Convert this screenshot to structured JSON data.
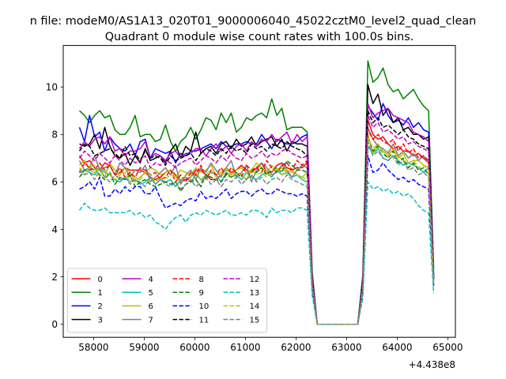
{
  "figure": {
    "suptitle": "n file: modeM0/AS1A13_020T01_9000006040_45022cztM0_level2_quad_clean",
    "offset_label": "+4.438e8"
  },
  "chart_data": {
    "type": "line",
    "title": "Quadrant 0 module wise count rates with 100.0s bins.",
    "xlabel": "",
    "ylabel": "",
    "x_offset": 443800000,
    "xlim": [
      57400,
      65150
    ],
    "ylim": [
      -0.55,
      11.75
    ],
    "x_ticks": [
      58000,
      59000,
      60000,
      61000,
      62000,
      63000,
      64000,
      65000
    ],
    "x_tick_labels": [
      "58000",
      "59000",
      "60000",
      "61000",
      "62000",
      "63000",
      "64000",
      "65000"
    ],
    "y_ticks": [
      0,
      2,
      4,
      6,
      8,
      10
    ],
    "y_tick_labels": [
      "0",
      "2",
      "4",
      "6",
      "8",
      "10"
    ],
    "grid": false,
    "legend_position": "lower-left",
    "legend_columns": 4,
    "x": {
      "start": 57720,
      "step": 100,
      "count": 71
    },
    "series": [
      {
        "name": "0",
        "color": "#ff0000",
        "dash": "solid",
        "values": [
          7.1,
          6.8,
          6.9,
          6.6,
          6.5,
          6.8,
          6.7,
          6.3,
          6.4,
          6.6,
          6.5,
          6.5,
          6.5,
          6.4,
          6.2,
          6.1,
          6.2,
          6.4,
          6.5,
          6.3,
          6.0,
          6.1,
          6.2,
          6.5,
          6.5,
          6.3,
          6.1,
          6.1,
          6.3,
          6.6,
          6.4,
          6.5,
          6.7,
          6.5,
          6.4,
          6.6,
          6.8,
          6.4,
          6.4,
          6.7,
          6.8,
          6.6,
          6.5,
          6.6,
          6.6,
          6.8,
          1.6,
          0,
          0,
          0,
          0,
          0,
          0,
          0,
          0,
          0,
          1.5,
          8.6,
          8.0,
          7.8,
          7.9,
          7.6,
          7.4,
          7.5,
          7.3,
          7.3,
          7.1,
          7.2,
          7.0,
          6.8,
          1.9
        ]
      },
      {
        "name": "1",
        "color": "#008000",
        "dash": "solid",
        "values": [
          9.0,
          8.8,
          8.5,
          8.8,
          9.0,
          8.7,
          8.8,
          8.2,
          8.0,
          8.0,
          8.3,
          8.8,
          7.9,
          8.0,
          8.0,
          7.7,
          7.8,
          8.4,
          7.7,
          7.3,
          7.7,
          7.9,
          8.3,
          7.8,
          8.2,
          8.7,
          8.6,
          8.2,
          8.9,
          8.5,
          8.9,
          8.1,
          8.3,
          8.7,
          8.6,
          8.8,
          8.9,
          8.7,
          9.5,
          8.8,
          9.1,
          8.2,
          8.3,
          8.3,
          8.3,
          8.1,
          2.2,
          0,
          0,
          0,
          0,
          0,
          0,
          0,
          0,
          0,
          2.1,
          11.1,
          10.2,
          10.4,
          10.8,
          10.1,
          9.8,
          9.9,
          9.5,
          9.7,
          9.9,
          9.5,
          9.2,
          9.0,
          2.3
        ]
      },
      {
        "name": "2",
        "color": "#0000ff",
        "dash": "solid",
        "values": [
          8.3,
          7.7,
          8.8,
          7.9,
          8.1,
          7.3,
          7.9,
          7.6,
          7.4,
          7.3,
          7.6,
          7.1,
          7.7,
          7.8,
          7.0,
          7.4,
          7.3,
          7.2,
          7.3,
          6.8,
          7.2,
          7.1,
          7.3,
          7.3,
          7.4,
          7.5,
          7.6,
          7.4,
          7.7,
          7.5,
          7.5,
          7.6,
          7.6,
          7.7,
          7.6,
          7.6,
          8.0,
          7.7,
          7.4,
          7.8,
          7.7,
          7.6,
          7.6,
          7.7,
          7.9,
          8.0,
          2.0,
          0,
          0,
          0,
          0,
          0,
          0,
          0,
          0,
          0,
          1.9,
          9.2,
          8.9,
          8.6,
          9.3,
          8.8,
          8.5,
          8.6,
          8.4,
          8.7,
          8.3,
          8.5,
          8.2,
          8.1,
          2.1
        ]
      },
      {
        "name": "3",
        "color": "#000000",
        "dash": "solid",
        "values": [
          7.6,
          7.5,
          7.6,
          8.0,
          7.4,
          8.3,
          7.5,
          7.1,
          7.0,
          7.2,
          6.7,
          7.1,
          6.8,
          7.4,
          6.9,
          7.0,
          7.1,
          6.8,
          7.3,
          7.6,
          7.0,
          7.5,
          7.3,
          8.1,
          7.2,
          7.4,
          7.5,
          7.2,
          7.6,
          7.7,
          7.4,
          7.8,
          7.5,
          7.6,
          7.9,
          7.5,
          7.7,
          7.8,
          7.9,
          7.5,
          7.8,
          7.3,
          7.7,
          7.6,
          7.6,
          7.5,
          1.9,
          0,
          0,
          0,
          0,
          0,
          0,
          0,
          0,
          0,
          1.8,
          10.1,
          9.3,
          9.7,
          8.8,
          9.1,
          8.5,
          8.7,
          8.2,
          8.3,
          8.0,
          8.0,
          7.8,
          7.9,
          2.0
        ]
      },
      {
        "name": "4",
        "color": "#bf00bf",
        "dash": "solid",
        "values": [
          7.4,
          7.7,
          7.5,
          7.8,
          7.9,
          7.6,
          7.9,
          7.3,
          7.4,
          7.1,
          7.3,
          7.3,
          7.4,
          7.7,
          7.0,
          7.2,
          7.1,
          6.9,
          7.2,
          7.3,
          7.0,
          7.2,
          7.2,
          7.4,
          7.4,
          7.1,
          7.4,
          7.6,
          7.3,
          7.5,
          7.2,
          7.5,
          7.6,
          7.3,
          7.7,
          7.5,
          7.8,
          7.7,
          8.0,
          7.7,
          7.9,
          8.1,
          7.6,
          8.0,
          7.7,
          7.9,
          1.9,
          0,
          0,
          0,
          0,
          0,
          0,
          0,
          0,
          0,
          1.8,
          9.3,
          8.7,
          8.9,
          9.0,
          9.1,
          8.8,
          8.7,
          8.6,
          8.5,
          8.1,
          8.0,
          7.9,
          7.7,
          2.0
        ]
      },
      {
        "name": "5",
        "color": "#00bfbf",
        "dash": "solid",
        "values": [
          6.4,
          6.5,
          6.4,
          6.3,
          6.6,
          6.4,
          6.3,
          6.1,
          6.0,
          6.2,
          6.0,
          6.1,
          5.9,
          6.0,
          6.2,
          5.9,
          6.1,
          6.0,
          6.1,
          5.8,
          6.1,
          6.2,
          6.0,
          6.3,
          6.1,
          6.2,
          6.4,
          6.3,
          6.0,
          6.4,
          6.2,
          6.3,
          6.1,
          6.4,
          6.2,
          6.1,
          6.3,
          6.4,
          6.2,
          6.5,
          6.3,
          6.4,
          6.2,
          6.3,
          6.1,
          6.0,
          1.5,
          0,
          0,
          0,
          0,
          0,
          0,
          0,
          0,
          0,
          1.4,
          7.5,
          7.2,
          7.4,
          7.0,
          6.9,
          7.1,
          6.9,
          6.7,
          6.8,
          6.7,
          6.6,
          6.4,
          6.6,
          1.7
        ]
      },
      {
        "name": "6",
        "color": "#bfbf00",
        "dash": "solid",
        "values": [
          6.7,
          6.9,
          6.5,
          6.4,
          6.6,
          6.2,
          6.8,
          6.5,
          6.3,
          6.6,
          6.4,
          6.0,
          6.2,
          6.4,
          6.6,
          6.5,
          6.3,
          6.4,
          6.5,
          6.2,
          6.5,
          6.4,
          6.3,
          6.6,
          6.4,
          6.5,
          6.7,
          6.3,
          6.4,
          6.6,
          6.3,
          6.5,
          6.6,
          6.4,
          6.5,
          6.8,
          6.6,
          6.4,
          6.7,
          6.5,
          6.6,
          6.4,
          6.5,
          6.3,
          6.2,
          6.4,
          1.6,
          0,
          0,
          0,
          0,
          0,
          0,
          0,
          0,
          0,
          1.5,
          8.0,
          7.2,
          7.6,
          7.3,
          7.1,
          7.4,
          7.0,
          7.2,
          6.8,
          6.9,
          6.9,
          6.7,
          6.6,
          1.8
        ]
      },
      {
        "name": "7",
        "color": "#808080",
        "dash": "solid",
        "values": [
          6.9,
          6.5,
          6.6,
          7.1,
          6.5,
          6.6,
          6.7,
          6.3,
          6.8,
          6.6,
          6.2,
          6.5,
          6.4,
          6.7,
          6.0,
          6.2,
          6.4,
          6.6,
          6.3,
          6.7,
          5.9,
          6.3,
          6.5,
          6.1,
          6.6,
          6.4,
          6.8,
          6.5,
          6.2,
          6.6,
          6.9,
          6.2,
          6.4,
          6.7,
          6.0,
          6.5,
          6.8,
          6.6,
          6.3,
          6.4,
          6.7,
          6.5,
          6.2,
          6.5,
          6.7,
          6.6,
          1.7,
          0,
          0,
          0,
          0,
          0,
          0,
          0,
          0,
          0,
          1.6,
          8.3,
          7.8,
          7.5,
          7.4,
          7.2,
          7.6,
          7.1,
          7.3,
          7.0,
          7.2,
          6.9,
          7.1,
          6.8,
          1.9
        ]
      },
      {
        "name": "8",
        "color": "#ff0000",
        "dash": "dashed",
        "values": [
          6.4,
          6.8,
          6.6,
          6.5,
          6.8,
          6.5,
          6.7,
          6.3,
          6.6,
          6.2,
          6.4,
          6.2,
          6.6,
          6.5,
          6.3,
          6.4,
          6.1,
          6.2,
          6.5,
          6.0,
          6.3,
          6.0,
          6.4,
          6.3,
          6.7,
          6.1,
          6.5,
          6.3,
          6.6,
          6.3,
          6.6,
          6.4,
          6.2,
          6.7,
          6.5,
          6.6,
          6.4,
          6.9,
          6.6,
          6.4,
          6.7,
          6.8,
          6.5,
          6.9,
          6.7,
          6.9,
          1.7,
          0,
          0,
          0,
          0,
          0,
          0,
          0,
          0,
          0,
          1.6,
          8.2,
          7.8,
          8.0,
          7.7,
          7.6,
          7.8,
          7.3,
          7.6,
          7.2,
          7.4,
          7.0,
          7.1,
          6.9,
          1.9
        ]
      },
      {
        "name": "9",
        "color": "#008000",
        "dash": "dashed",
        "values": [
          6.2,
          6.5,
          6.5,
          6.6,
          6.3,
          6.1,
          6.4,
          5.9,
          6.2,
          6.1,
          6.3,
          5.8,
          6.0,
          6.1,
          5.9,
          5.8,
          5.9,
          6.0,
          5.9,
          6.0,
          5.6,
          5.9,
          6.0,
          6.1,
          5.8,
          6.3,
          6.2,
          6.1,
          6.0,
          6.3,
          6.2,
          6.4,
          6.3,
          6.1,
          6.5,
          6.4,
          6.6,
          6.3,
          6.5,
          6.6,
          6.4,
          6.9,
          6.7,
          6.5,
          6.5,
          6.4,
          1.6,
          0,
          0,
          0,
          0,
          0,
          0,
          0,
          0,
          0,
          1.5,
          7.9,
          7.3,
          7.5,
          7.2,
          7.0,
          7.3,
          6.8,
          7.0,
          6.6,
          6.8,
          6.5,
          6.6,
          6.3,
          1.8
        ]
      },
      {
        "name": "10",
        "color": "#0000ff",
        "dash": "dashed",
        "values": [
          5.7,
          5.8,
          6.0,
          5.7,
          6.2,
          5.4,
          5.4,
          5.7,
          5.5,
          5.8,
          5.6,
          5.8,
          5.8,
          5.5,
          5.5,
          5.8,
          5.3,
          4.9,
          5.0,
          5.1,
          5.0,
          5.2,
          5.3,
          5.2,
          5.6,
          5.3,
          5.4,
          5.3,
          5.5,
          5.7,
          5.3,
          5.5,
          5.6,
          5.6,
          5.4,
          5.6,
          5.7,
          5.5,
          5.5,
          5.7,
          5.6,
          5.5,
          5.5,
          5.4,
          5.5,
          5.4,
          1.4,
          0,
          0,
          0,
          0,
          0,
          0,
          0,
          0,
          0,
          1.3,
          7.1,
          6.4,
          6.5,
          6.8,
          6.5,
          6.3,
          6.1,
          6.2,
          6.0,
          6.1,
          5.9,
          5.8,
          5.7,
          1.6
        ]
      },
      {
        "name": "11",
        "color": "#000000",
        "dash": "dashed",
        "values": [
          7.3,
          7.6,
          7.5,
          7.1,
          7.2,
          7.3,
          7.4,
          7.2,
          7.0,
          7.5,
          7.1,
          7.2,
          6.9,
          7.3,
          7.0,
          7.1,
          7.0,
          6.7,
          7.1,
          6.9,
          7.0,
          7.1,
          7.2,
          6.9,
          7.2,
          7.4,
          7.3,
          7.1,
          7.4,
          7.2,
          7.5,
          7.3,
          7.4,
          7.2,
          7.6,
          7.4,
          7.5,
          7.3,
          7.6,
          7.5,
          7.4,
          7.7,
          7.5,
          7.4,
          7.3,
          7.1,
          1.8,
          0,
          0,
          0,
          0,
          0,
          0,
          0,
          0,
          0,
          1.7,
          9.0,
          8.5,
          8.7,
          8.3,
          8.4,
          8.2,
          8.0,
          8.2,
          7.9,
          7.8,
          7.6,
          7.5,
          7.4,
          1.9
        ]
      },
      {
        "name": "12",
        "color": "#bf00bf",
        "dash": "dashed",
        "values": [
          7.0,
          7.3,
          7.1,
          6.9,
          7.2,
          7.0,
          6.8,
          7.1,
          6.9,
          6.7,
          7.0,
          6.8,
          6.9,
          7.1,
          6.6,
          6.8,
          6.7,
          6.9,
          6.8,
          6.6,
          6.8,
          6.9,
          7.0,
          6.7,
          6.9,
          7.1,
          7.0,
          6.8,
          7.1,
          6.9,
          7.2,
          7.0,
          6.9,
          7.2,
          7.0,
          7.1,
          7.3,
          7.0,
          7.2,
          7.1,
          7.3,
          7.4,
          7.2,
          7.1,
          7.0,
          7.1,
          1.8,
          0,
          0,
          0,
          0,
          0,
          0,
          0,
          0,
          0,
          1.7,
          8.8,
          8.3,
          8.5,
          8.1,
          8.2,
          8.0,
          7.8,
          7.9,
          7.6,
          7.7,
          7.5,
          7.4,
          7.3,
          1.9
        ]
      },
      {
        "name": "13",
        "color": "#00bfbf",
        "dash": "dashed",
        "values": [
          4.8,
          5.1,
          4.9,
          4.8,
          4.8,
          4.9,
          4.7,
          4.7,
          4.7,
          4.7,
          4.8,
          4.6,
          4.7,
          4.5,
          4.6,
          4.3,
          4.2,
          4.0,
          4.3,
          4.5,
          4.6,
          4.3,
          4.6,
          4.7,
          4.6,
          4.8,
          4.7,
          4.6,
          4.7,
          4.8,
          4.6,
          4.6,
          4.7,
          4.6,
          4.8,
          4.8,
          4.7,
          4.5,
          4.9,
          4.7,
          4.8,
          4.8,
          4.7,
          4.9,
          4.9,
          4.8,
          1.2,
          0,
          0,
          0,
          0,
          0,
          0,
          0,
          0,
          0,
          1.1,
          6.0,
          5.7,
          5.8,
          5.6,
          5.7,
          5.5,
          5.6,
          5.4,
          5.5,
          5.3,
          5.0,
          4.8,
          4.7,
          1.3
        ]
      },
      {
        "name": "14",
        "color": "#bfbf00",
        "dash": "dashed",
        "values": [
          6.6,
          6.3,
          6.6,
          6.7,
          6.2,
          6.5,
          6.3,
          6.1,
          6.3,
          6.4,
          6.0,
          6.2,
          6.1,
          6.4,
          6.3,
          6.0,
          6.2,
          6.1,
          6.3,
          6.2,
          6.0,
          6.3,
          6.2,
          6.4,
          6.1,
          6.3,
          6.5,
          6.2,
          6.3,
          6.5,
          6.2,
          6.4,
          6.3,
          6.1,
          6.5,
          6.3,
          6.4,
          6.2,
          6.4,
          6.6,
          6.3,
          6.5,
          6.4,
          6.3,
          6.2,
          6.1,
          1.6,
          0,
          0,
          0,
          0,
          0,
          0,
          0,
          0,
          0,
          1.5,
          7.9,
          7.4,
          7.6,
          7.2,
          7.3,
          7.0,
          7.1,
          6.9,
          6.8,
          6.9,
          6.6,
          6.7,
          6.5,
          1.7
        ]
      },
      {
        "name": "15",
        "color": "#808080",
        "dash": "dashed",
        "values": [
          6.5,
          6.3,
          6.4,
          6.1,
          6.5,
          6.2,
          6.0,
          6.3,
          6.1,
          6.2,
          5.9,
          6.1,
          6.0,
          5.8,
          6.2,
          5.9,
          6.1,
          5.9,
          5.8,
          6.0,
          5.7,
          5.9,
          6.1,
          5.8,
          6.0,
          6.2,
          5.9,
          6.1,
          5.8,
          6.1,
          6.0,
          6.2,
          5.9,
          6.1,
          6.3,
          6.0,
          6.2,
          5.9,
          6.1,
          6.2,
          6.0,
          6.3,
          6.1,
          6.0,
          5.9,
          5.8,
          1.5,
          0,
          0,
          0,
          0,
          0,
          0,
          0,
          0,
          0,
          1.4,
          7.7,
          7.1,
          7.3,
          7.0,
          6.9,
          7.1,
          6.7,
          6.9,
          6.5,
          6.6,
          6.3,
          6.4,
          6.2,
          1.7
        ]
      }
    ]
  }
}
